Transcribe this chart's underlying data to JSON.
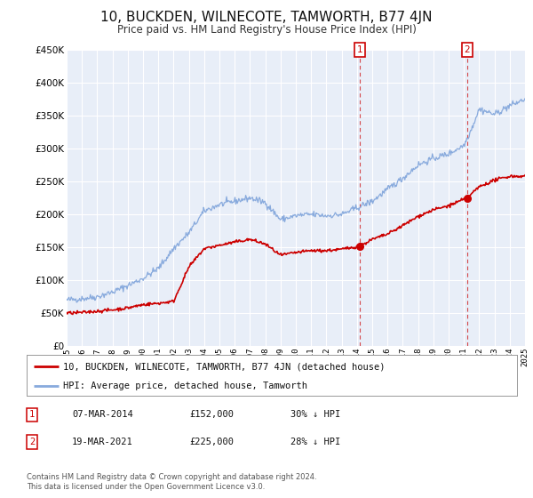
{
  "title": "10, BUCKDEN, WILNECOTE, TAMWORTH, B77 4JN",
  "subtitle": "Price paid vs. HM Land Registry's House Price Index (HPI)",
  "title_fontsize": 11,
  "subtitle_fontsize": 8.5,
  "background_color": "#ffffff",
  "plot_bg_color": "#e8eef8",
  "grid_color": "#ffffff",
  "red_line_color": "#cc0000",
  "blue_line_color": "#88aadd",
  "marker1_date": "07-MAR-2014",
  "marker1_price": "£152,000",
  "marker1_pct": "30% ↓ HPI",
  "marker2_date": "19-MAR-2021",
  "marker2_price": "£225,000",
  "marker2_pct": "28% ↓ HPI",
  "legend1": "10, BUCKDEN, WILNECOTE, TAMWORTH, B77 4JN (detached house)",
  "legend2": "HPI: Average price, detached house, Tamworth",
  "footer1": "Contains HM Land Registry data © Crown copyright and database right 2024.",
  "footer2": "This data is licensed under the Open Government Licence v3.0.",
  "ylim": [
    0,
    450000
  ],
  "yticks": [
    0,
    50000,
    100000,
    150000,
    200000,
    250000,
    300000,
    350000,
    400000,
    450000
  ],
  "ytick_labels": [
    "£0",
    "£50K",
    "£100K",
    "£150K",
    "£200K",
    "£250K",
    "£300K",
    "£350K",
    "£400K",
    "£450K"
  ],
  "year_start": 1995,
  "year_end": 2025,
  "marker1_year": 2014.18,
  "marker2_year": 2021.21,
  "marker1_price_val": 152000,
  "marker2_price_val": 225000
}
